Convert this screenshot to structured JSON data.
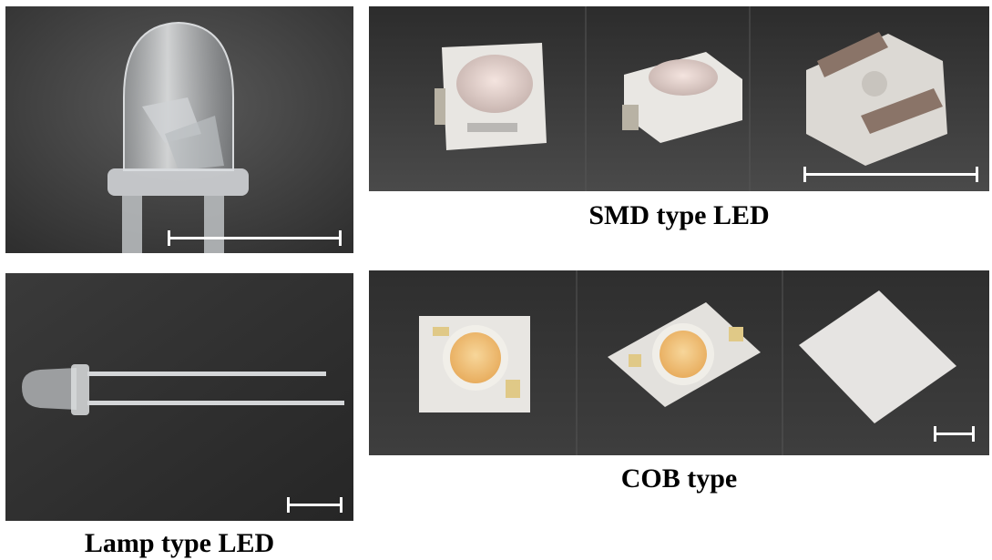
{
  "figure": {
    "captions": {
      "smd": "SMD type LED",
      "cob": "COB type",
      "lamp": "Lamp type LED"
    },
    "panels": [
      {
        "id": "lamp-closeup",
        "subject": "lamp-type-led-closeup",
        "has_scale_bar": true
      },
      {
        "id": "smd-photos",
        "subject": "three-smd-led-packages",
        "has_scale_bar": true
      },
      {
        "id": "lamp-full",
        "subject": "lamp-type-led-with-leads",
        "has_scale_bar": true
      },
      {
        "id": "cob-photos",
        "subject": "three-cob-led-modules",
        "has_scale_bar": true
      }
    ],
    "colors": {
      "background": "#3a3a3a",
      "scale_bar": "#ffffff",
      "package_body": "#e8e6e2",
      "phosphor": "#f2c27a",
      "solder_pad": "#e0c987",
      "caption_text": "#000000"
    }
  }
}
